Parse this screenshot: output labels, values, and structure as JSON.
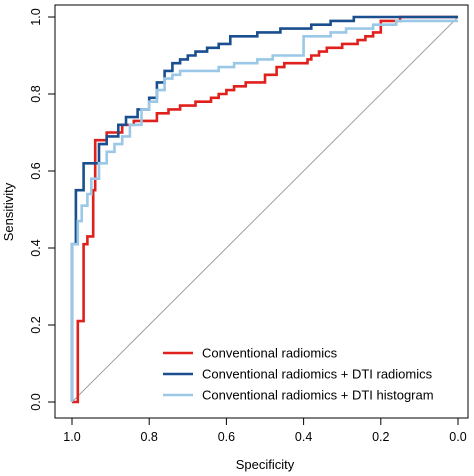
{
  "chart_data": {
    "type": "line",
    "xlabel": "Specificity",
    "ylabel": "Sensitivity",
    "xlim": [
      1.0,
      0.0
    ],
    "ylim": [
      0.0,
      1.0
    ],
    "x_ticks": [
      "1.0",
      "0.8",
      "0.6",
      "0.4",
      "0.2",
      "0.0"
    ],
    "x_tick_values": [
      1.0,
      0.8,
      0.6,
      0.4,
      0.2,
      0.0
    ],
    "y_ticks": [
      "0.0",
      "0.2",
      "0.4",
      "0.6",
      "0.8",
      "1.0"
    ],
    "y_tick_values": [
      0.0,
      0.2,
      0.4,
      0.6,
      0.8,
      1.0
    ],
    "grid": false,
    "legend_position": "bottom-right",
    "reference_line": {
      "from": [
        1.0,
        0.0
      ],
      "to": [
        0.0,
        1.0
      ],
      "color": "#a0a0a0"
    },
    "series": [
      {
        "name": "Conventional radiomics",
        "color": "#e0201c",
        "points": [
          [
            1.0,
            0.0
          ],
          [
            0.985,
            0.0
          ],
          [
            0.985,
            0.21
          ],
          [
            0.97,
            0.21
          ],
          [
            0.97,
            0.41
          ],
          [
            0.96,
            0.41
          ],
          [
            0.96,
            0.43
          ],
          [
            0.945,
            0.43
          ],
          [
            0.945,
            0.55
          ],
          [
            0.94,
            0.55
          ],
          [
            0.94,
            0.68
          ],
          [
            0.91,
            0.68
          ],
          [
            0.91,
            0.7
          ],
          [
            0.87,
            0.7
          ],
          [
            0.87,
            0.72
          ],
          [
            0.84,
            0.72
          ],
          [
            0.84,
            0.73
          ],
          [
            0.78,
            0.73
          ],
          [
            0.78,
            0.75
          ],
          [
            0.75,
            0.75
          ],
          [
            0.75,
            0.76
          ],
          [
            0.72,
            0.76
          ],
          [
            0.72,
            0.77
          ],
          [
            0.68,
            0.77
          ],
          [
            0.68,
            0.78
          ],
          [
            0.64,
            0.78
          ],
          [
            0.64,
            0.79
          ],
          [
            0.62,
            0.79
          ],
          [
            0.62,
            0.8
          ],
          [
            0.6,
            0.8
          ],
          [
            0.6,
            0.81
          ],
          [
            0.58,
            0.81
          ],
          [
            0.58,
            0.82
          ],
          [
            0.55,
            0.82
          ],
          [
            0.55,
            0.83
          ],
          [
            0.5,
            0.83
          ],
          [
            0.5,
            0.85
          ],
          [
            0.47,
            0.85
          ],
          [
            0.47,
            0.87
          ],
          [
            0.45,
            0.87
          ],
          [
            0.45,
            0.88
          ],
          [
            0.39,
            0.88
          ],
          [
            0.39,
            0.89
          ],
          [
            0.38,
            0.89
          ],
          [
            0.38,
            0.9
          ],
          [
            0.36,
            0.9
          ],
          [
            0.36,
            0.91
          ],
          [
            0.34,
            0.91
          ],
          [
            0.34,
            0.92
          ],
          [
            0.3,
            0.92
          ],
          [
            0.3,
            0.93
          ],
          [
            0.26,
            0.93
          ],
          [
            0.26,
            0.94
          ],
          [
            0.24,
            0.94
          ],
          [
            0.24,
            0.95
          ],
          [
            0.22,
            0.95
          ],
          [
            0.22,
            0.96
          ],
          [
            0.2,
            0.96
          ],
          [
            0.2,
            0.99
          ],
          [
            0.15,
            0.99
          ],
          [
            0.15,
            1.0
          ],
          [
            0.0,
            1.0
          ]
        ]
      },
      {
        "name": "Conventional radiomics + DTI radiomics",
        "color": "#1a4f8f",
        "points": [
          [
            1.0,
            0.0
          ],
          [
            1.0,
            0.41
          ],
          [
            0.99,
            0.41
          ],
          [
            0.99,
            0.55
          ],
          [
            0.97,
            0.55
          ],
          [
            0.97,
            0.62
          ],
          [
            0.93,
            0.62
          ],
          [
            0.93,
            0.67
          ],
          [
            0.91,
            0.67
          ],
          [
            0.91,
            0.69
          ],
          [
            0.88,
            0.69
          ],
          [
            0.88,
            0.72
          ],
          [
            0.86,
            0.72
          ],
          [
            0.86,
            0.74
          ],
          [
            0.83,
            0.74
          ],
          [
            0.83,
            0.76
          ],
          [
            0.8,
            0.76
          ],
          [
            0.8,
            0.79
          ],
          [
            0.78,
            0.79
          ],
          [
            0.78,
            0.83
          ],
          [
            0.76,
            0.83
          ],
          [
            0.76,
            0.86
          ],
          [
            0.74,
            0.86
          ],
          [
            0.74,
            0.88
          ],
          [
            0.72,
            0.88
          ],
          [
            0.72,
            0.89
          ],
          [
            0.7,
            0.89
          ],
          [
            0.7,
            0.9
          ],
          [
            0.68,
            0.9
          ],
          [
            0.68,
            0.91
          ],
          [
            0.65,
            0.91
          ],
          [
            0.65,
            0.92
          ],
          [
            0.62,
            0.92
          ],
          [
            0.62,
            0.93
          ],
          [
            0.59,
            0.93
          ],
          [
            0.59,
            0.95
          ],
          [
            0.52,
            0.95
          ],
          [
            0.52,
            0.96
          ],
          [
            0.46,
            0.96
          ],
          [
            0.46,
            0.97
          ],
          [
            0.38,
            0.97
          ],
          [
            0.38,
            0.98
          ],
          [
            0.33,
            0.98
          ],
          [
            0.33,
            0.99
          ],
          [
            0.27,
            0.99
          ],
          [
            0.27,
            1.0
          ],
          [
            0.0,
            1.0
          ]
        ]
      },
      {
        "name": "Conventional radiomics + DTI histogram",
        "color": "#9ac8e6",
        "points": [
          [
            1.0,
            0.0
          ],
          [
            1.0,
            0.41
          ],
          [
            0.985,
            0.41
          ],
          [
            0.985,
            0.47
          ],
          [
            0.975,
            0.47
          ],
          [
            0.975,
            0.51
          ],
          [
            0.96,
            0.51
          ],
          [
            0.96,
            0.54
          ],
          [
            0.95,
            0.54
          ],
          [
            0.95,
            0.58
          ],
          [
            0.93,
            0.58
          ],
          [
            0.93,
            0.62
          ],
          [
            0.91,
            0.62
          ],
          [
            0.91,
            0.65
          ],
          [
            0.89,
            0.65
          ],
          [
            0.89,
            0.67
          ],
          [
            0.87,
            0.67
          ],
          [
            0.87,
            0.69
          ],
          [
            0.85,
            0.69
          ],
          [
            0.85,
            0.72
          ],
          [
            0.82,
            0.72
          ],
          [
            0.82,
            0.76
          ],
          [
            0.8,
            0.76
          ],
          [
            0.8,
            0.78
          ],
          [
            0.78,
            0.78
          ],
          [
            0.78,
            0.81
          ],
          [
            0.76,
            0.81
          ],
          [
            0.76,
            0.84
          ],
          [
            0.74,
            0.84
          ],
          [
            0.74,
            0.85
          ],
          [
            0.72,
            0.85
          ],
          [
            0.72,
            0.86
          ],
          [
            0.62,
            0.86
          ],
          [
            0.62,
            0.87
          ],
          [
            0.58,
            0.87
          ],
          [
            0.58,
            0.88
          ],
          [
            0.52,
            0.88
          ],
          [
            0.52,
            0.89
          ],
          [
            0.48,
            0.89
          ],
          [
            0.48,
            0.9
          ],
          [
            0.4,
            0.9
          ],
          [
            0.4,
            0.95
          ],
          [
            0.33,
            0.95
          ],
          [
            0.33,
            0.96
          ],
          [
            0.29,
            0.96
          ],
          [
            0.29,
            0.97
          ],
          [
            0.22,
            0.97
          ],
          [
            0.22,
            0.98
          ],
          [
            0.16,
            0.98
          ],
          [
            0.16,
            0.99
          ],
          [
            0.0,
            0.99
          ]
        ]
      }
    ]
  }
}
